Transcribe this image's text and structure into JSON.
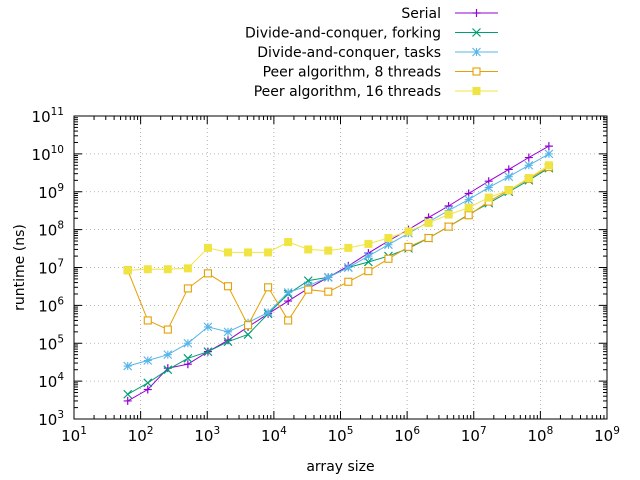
{
  "chart_data": {
    "type": "line",
    "title": "",
    "xlabel": "array size",
    "ylabel": "runtime (ns)",
    "x_scale": "log10",
    "y_scale": "log10",
    "xlim": [
      10,
      1000000000
    ],
    "ylim": [
      1000,
      100000000000
    ],
    "x_ticks": [
      {
        "base": "10",
        "exp": "1",
        "value": 10
      },
      {
        "base": "10",
        "exp": "2",
        "value": 100
      },
      {
        "base": "10",
        "exp": "3",
        "value": 1000
      },
      {
        "base": "10",
        "exp": "4",
        "value": 10000
      },
      {
        "base": "10",
        "exp": "5",
        "value": 100000
      },
      {
        "base": "10",
        "exp": "6",
        "value": 1000000
      },
      {
        "base": "10",
        "exp": "7",
        "value": 10000000
      },
      {
        "base": "10",
        "exp": "8",
        "value": 100000000
      },
      {
        "base": "10",
        "exp": "9",
        "value": 1000000000
      }
    ],
    "y_ticks": [
      {
        "base": "10",
        "exp": "3",
        "value": 1000
      },
      {
        "base": "10",
        "exp": "4",
        "value": 10000
      },
      {
        "base": "10",
        "exp": "5",
        "value": 100000
      },
      {
        "base": "10",
        "exp": "6",
        "value": 1000000
      },
      {
        "base": "10",
        "exp": "7",
        "value": 10000000
      },
      {
        "base": "10",
        "exp": "8",
        "value": 100000000
      },
      {
        "base": "10",
        "exp": "9",
        "value": 1000000000
      },
      {
        "base": "10",
        "exp": "10",
        "value": 10000000000
      },
      {
        "base": "10",
        "exp": "11",
        "value": 100000000000
      }
    ],
    "grid": true,
    "legend_position": "top-right",
    "x": [
      64,
      128,
      256,
      512,
      1024,
      2048,
      4096,
      8192,
      16384,
      32768,
      65536,
      131072,
      262144,
      524288,
      1048576,
      2097152,
      4194304,
      8388608,
      16777216,
      33554432,
      67108864,
      134217728
    ],
    "series": [
      {
        "name": "Serial",
        "color": "#9400d3",
        "marker": "plus",
        "values": [
          3000,
          6000,
          22000,
          28000,
          60000,
          120000,
          270000,
          600000,
          1300000,
          2800000,
          5500000,
          11000000,
          24000000,
          50000000,
          100000000,
          210000000,
          420000000,
          900000000,
          1900000000,
          3900000000,
          8000000000,
          16000000000
        ]
      },
      {
        "name": "Divide-and-conquer, forking",
        "color": "#009e73",
        "marker": "cross",
        "values": [
          4500,
          9000,
          20000,
          40000,
          60000,
          110000,
          170000,
          600000,
          2000000,
          4500000,
          5500000,
          10000000,
          14000000,
          20000000,
          32000000,
          60000000,
          120000000,
          250000000,
          500000000,
          1000000000,
          2000000000,
          4200000000
        ]
      },
      {
        "name": "Divide-and-conquer, tasks",
        "color": "#56b4e9",
        "marker": "star",
        "values": [
          25000,
          35000,
          50000,
          100000,
          270000,
          200000,
          350000,
          650000,
          2200000,
          3300000,
          5500000,
          10000000,
          20000000,
          40000000,
          80000000,
          160000000,
          320000000,
          620000000,
          1300000000,
          2500000000,
          5000000000,
          10000000000
        ]
      },
      {
        "name": "Peer algorithm, 8 threads",
        "color": "#e69f00",
        "marker": "open-square",
        "values": [
          8500000,
          400000,
          230000,
          2800000,
          7000000,
          3200000,
          300000,
          3000000,
          400000,
          2600000,
          2300000,
          4200000,
          8000000,
          17000000,
          35000000,
          60000000,
          120000000,
          240000000,
          550000000,
          1100000000,
          2200000000,
          4500000000
        ]
      },
      {
        "name": "Peer algorithm, 16 threads",
        "color": "#f0e442",
        "marker": "filled-square",
        "values": [
          8500000,
          9000000,
          9000000,
          9500000,
          33000000,
          25000000,
          25000000,
          25000000,
          47000000,
          30000000,
          28000000,
          33000000,
          42000000,
          60000000,
          90000000,
          150000000,
          250000000,
          380000000,
          700000000,
          1100000000,
          2300000000,
          5000000000
        ]
      }
    ]
  }
}
